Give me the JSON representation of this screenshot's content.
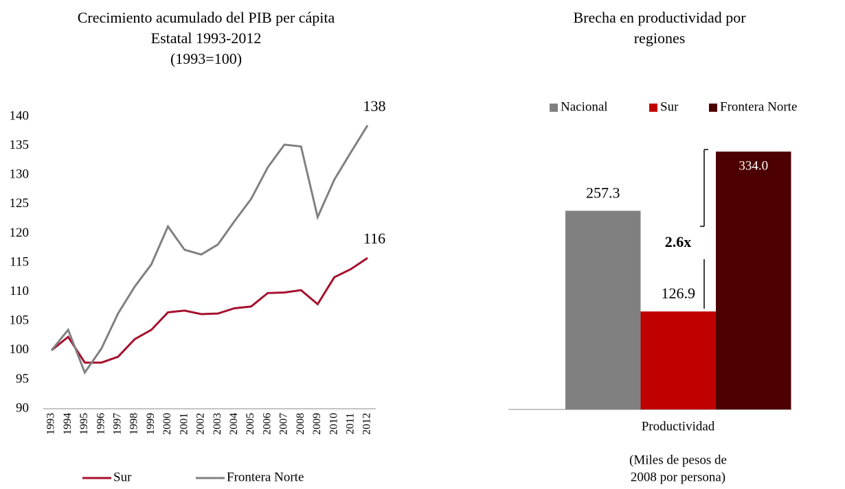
{
  "chart_data": [
    {
      "type": "line",
      "title": [
        "Crecimiento acumulado del PIB per cápita",
        "Estatal 1993-2012",
        "(1993=100)"
      ],
      "categories": [
        "1993",
        "1994",
        "1995",
        "1996",
        "1997",
        "1998",
        "1999",
        "2000",
        "2001",
        "2002",
        "2003",
        "2004",
        "2005",
        "2006",
        "2007",
        "2008",
        "2009",
        "2010",
        "2011",
        "2012"
      ],
      "series": [
        {
          "name": "Sur",
          "color": "#a50f2d",
          "values": [
            100,
            102.3,
            97.9,
            97.9,
            98.9,
            101.9,
            103.5,
            106.5,
            106.8,
            106.2,
            106.3,
            107.2,
            107.5,
            109.8,
            109.9,
            110.3,
            107.9,
            112.5,
            113.9,
            115.8
          ],
          "value_labels": [
            null,
            null,
            null,
            null,
            null,
            null,
            null,
            null,
            null,
            null,
            null,
            null,
            null,
            null,
            null,
            null,
            null,
            null,
            null,
            "116"
          ]
        },
        {
          "name": "Frontera Norte",
          "color": "#808080",
          "values": [
            100,
            103.5,
            96.2,
            100.3,
            106.3,
            110.9,
            114.7,
            121.2,
            117.2,
            116.4,
            118.1,
            122.1,
            125.9,
            131.3,
            135.2,
            134.9,
            122.8,
            129.2,
            133.9,
            138.5
          ],
          "value_labels": [
            null,
            null,
            null,
            null,
            null,
            null,
            null,
            null,
            null,
            null,
            null,
            null,
            null,
            null,
            null,
            null,
            null,
            null,
            null,
            "138"
          ]
        }
      ],
      "ylim": [
        90,
        140
      ],
      "yticks": [
        90,
        95,
        100,
        105,
        110,
        115,
        120,
        125,
        130,
        135,
        140
      ],
      "legend": "bottom"
    },
    {
      "type": "bar",
      "title": [
        "Brecha en productividad por",
        "regiones"
      ],
      "categories": [
        "Productividad"
      ],
      "series": [
        {
          "name": "Nacional",
          "color": "#808080",
          "values": [
            257.3
          ]
        },
        {
          "name": "Sur",
          "color": "#c00000",
          "values": [
            126.9
          ]
        },
        {
          "name": "Frontera Norte",
          "color": "#4d0000",
          "values": [
            334.0
          ],
          "value_labels": [
            "334.0"
          ]
        }
      ],
      "annotation": "2.6x",
      "note": [
        "(Miles de pesos de",
        "2008 por persona)"
      ],
      "legend": "top"
    }
  ]
}
